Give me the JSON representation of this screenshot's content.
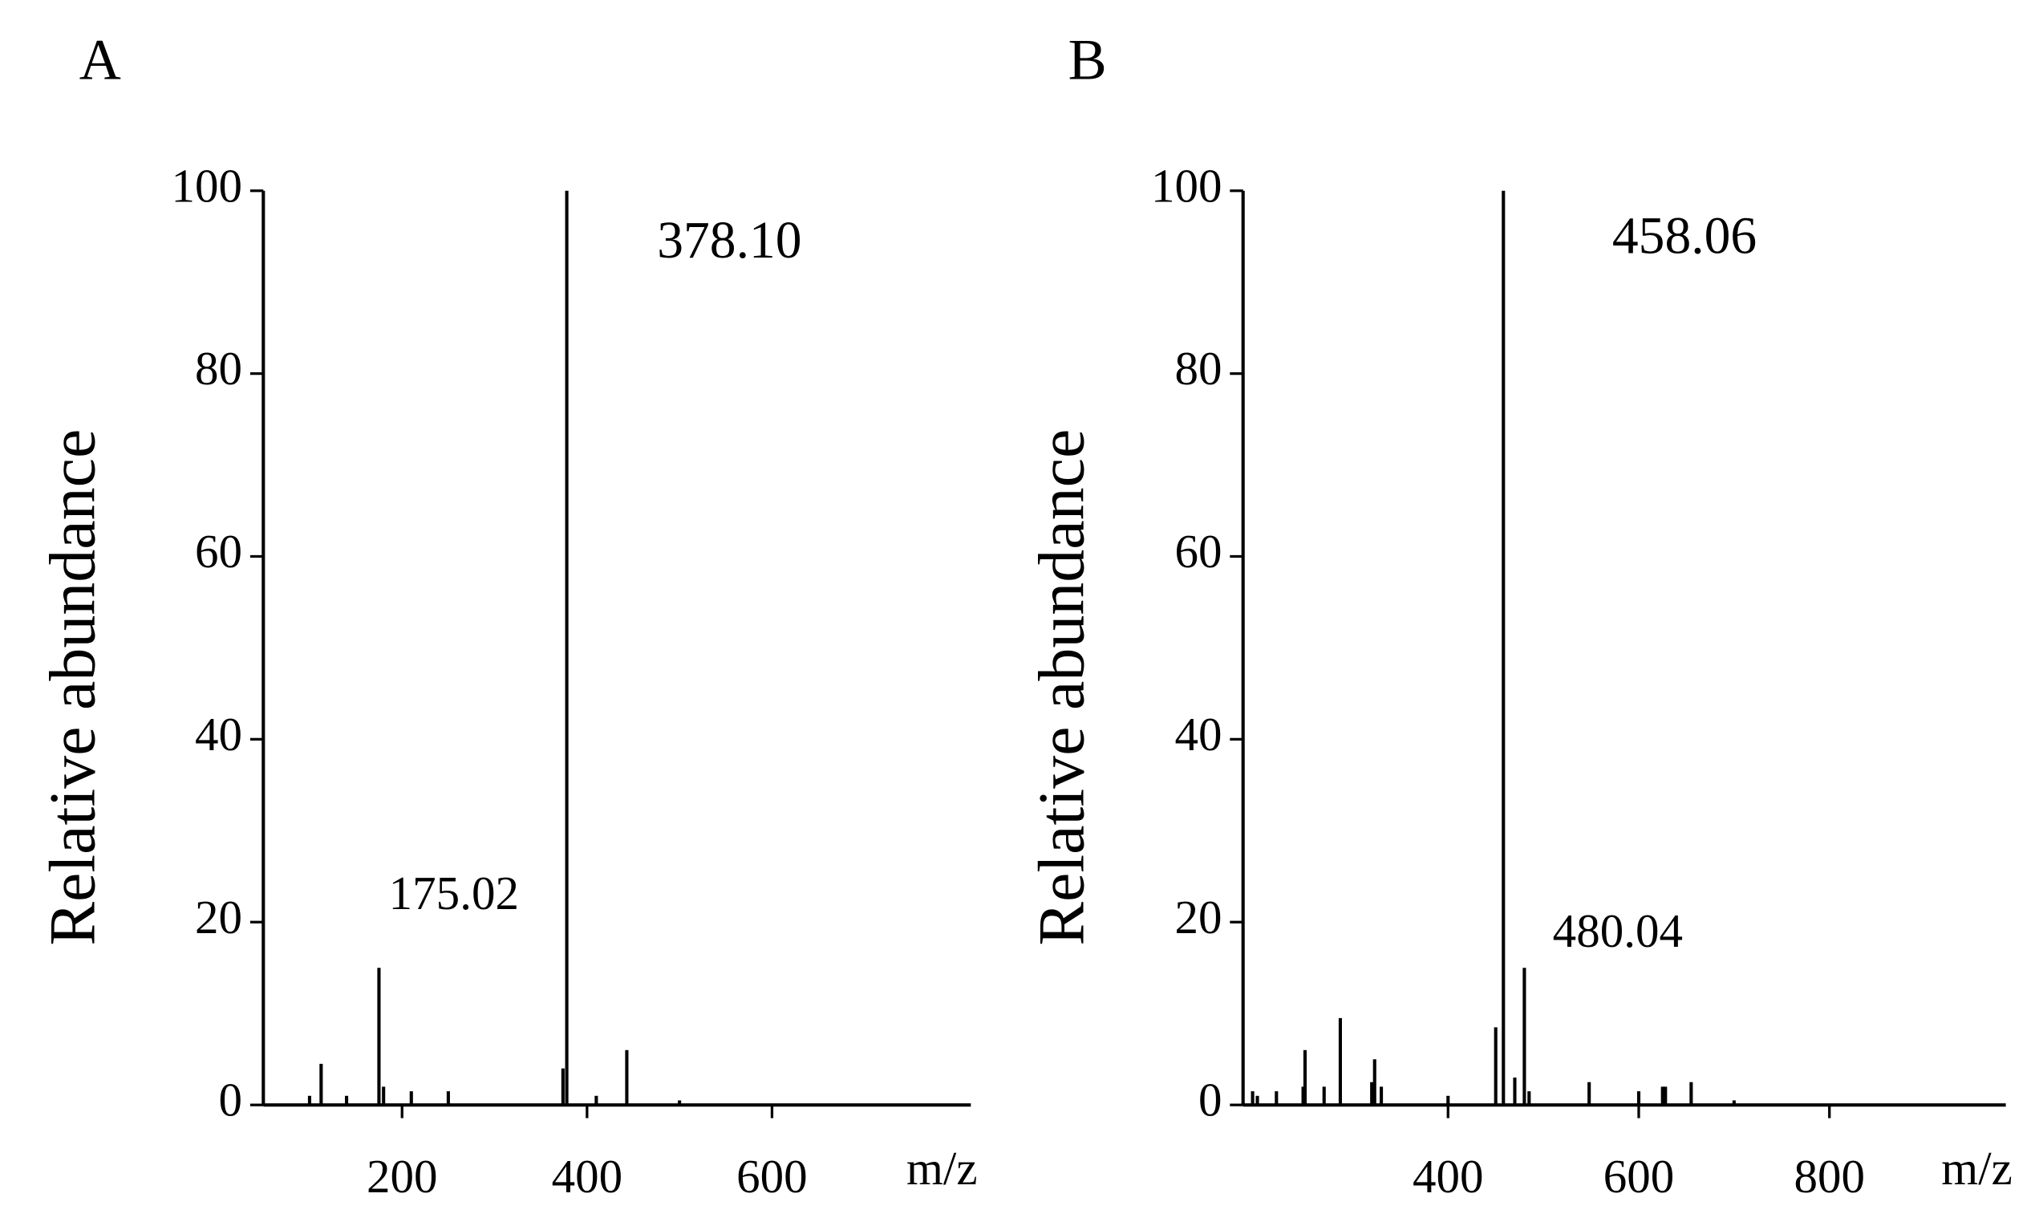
{
  "chart_data": [
    {
      "type": "stem",
      "title": "A",
      "xlabel": "m/z",
      "ylabel": "Relative abundance",
      "color": "#000000",
      "x": [
        100,
        112.5,
        140,
        175.02,
        180,
        210,
        250,
        374,
        378.1,
        410,
        443,
        500
      ],
      "values": [
        1,
        4.5,
        1,
        15,
        2,
        1.5,
        1.5,
        4,
        100,
        1,
        6,
        0.5
      ],
      "xlim": [
        50,
        815
      ],
      "xticks": [
        200,
        400,
        600
      ],
      "ylim": [
        0,
        100
      ],
      "yticks": [
        0,
        20,
        40,
        60,
        80,
        100
      ],
      "annotations": [
        {
          "text": "378.10",
          "x": 554,
          "y": 94
        },
        {
          "text": "175.02",
          "x": 256,
          "y": 22.6
        }
      ]
    },
    {
      "type": "stem",
      "title": "B",
      "xlabel": "m/z",
      "ylabel": "Relative abundance",
      "color": "#000000",
      "x": [
        195,
        200,
        220,
        248,
        250,
        270,
        287,
        320,
        323,
        330,
        400,
        450,
        458.06,
        470,
        480.04,
        485,
        548,
        600,
        625,
        628,
        655,
        700
      ],
      "values": [
        1.5,
        1,
        1.5,
        2,
        6,
        2,
        9.5,
        2.5,
        5,
        2,
        1,
        8.5,
        100,
        3,
        15,
        1.5,
        2.5,
        1.5,
        2,
        2,
        2.5,
        0.5
      ],
      "xlim": [
        185,
        985
      ],
      "xticks": [
        400,
        600,
        800
      ],
      "ylim": [
        0,
        100
      ],
      "yticks": [
        0,
        20,
        40,
        60,
        80,
        100
      ],
      "annotations": [
        {
          "text": "458.06",
          "x": 648,
          "y": 94.5
        },
        {
          "text": "480.04",
          "x": 578,
          "y": 18.5
        }
      ]
    }
  ]
}
